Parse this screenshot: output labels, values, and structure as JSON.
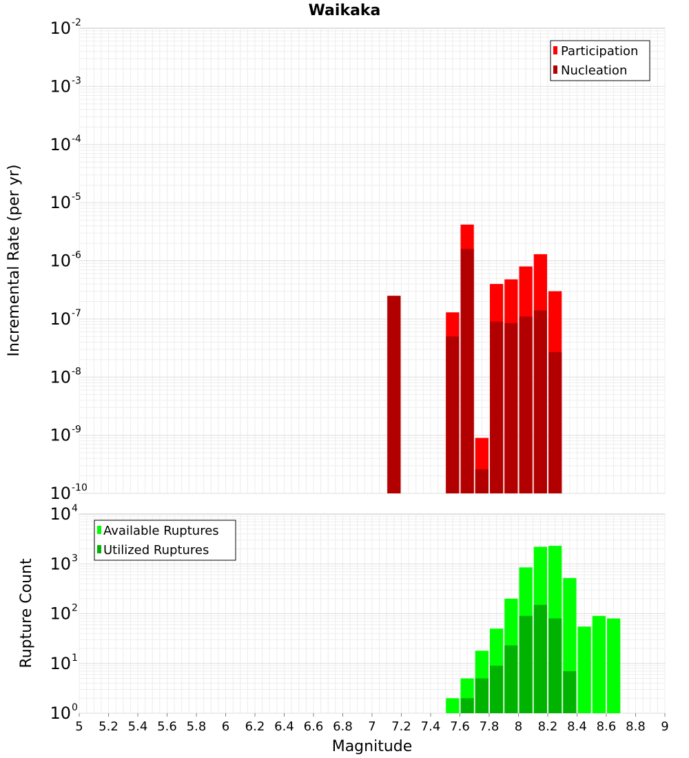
{
  "chart_data": [
    {
      "type": "bar",
      "title": "Waikaka",
      "xlabel": "Magnitude",
      "ylabel": "Incremental Rate (per yr)",
      "yscale": "log",
      "ylim_exponents": [
        -10,
        -2
      ],
      "xlim": [
        5,
        9
      ],
      "bin_width": 0.1,
      "legend_position": "top-right",
      "series": [
        {
          "name": "Participation",
          "color": "#ff0000",
          "bins": [
            7.15,
            7.55,
            7.65,
            7.75,
            7.85,
            7.95,
            8.05,
            8.15,
            8.25
          ],
          "values": [
            2.5e-07,
            1.3e-07,
            4.2e-06,
            9e-10,
            4e-07,
            4.8e-07,
            8e-07,
            1.3e-06,
            3e-07
          ]
        },
        {
          "name": "Nucleation",
          "color": "#b20000",
          "bins": [
            7.15,
            7.55,
            7.65,
            7.75,
            7.85,
            7.95,
            8.05,
            8.15,
            8.25
          ],
          "values": [
            2.5e-07,
            5e-08,
            1.6e-06,
            2.6e-10,
            9e-08,
            8.5e-08,
            1.1e-07,
            1.4e-07,
            2.7e-08
          ]
        }
      ]
    },
    {
      "type": "bar",
      "xlabel": "Magnitude",
      "ylabel": "Rupture Count",
      "yscale": "log",
      "ylim_exponents": [
        0,
        4
      ],
      "xlim": [
        5,
        9
      ],
      "bin_width": 0.1,
      "legend_position": "top-left",
      "series": [
        {
          "name": "Available Ruptures",
          "color": "#00ff00",
          "bins": [
            7.15,
            7.55,
            7.65,
            7.75,
            7.85,
            7.95,
            8.05,
            8.15,
            8.25,
            8.35,
            8.45,
            8.55,
            8.65
          ],
          "values": [
            1,
            2,
            5,
            18,
            50,
            200,
            850,
            2200,
            2300,
            520,
            55,
            90,
            80
          ]
        },
        {
          "name": "Utilized Ruptures",
          "color": "#00b300",
          "bins": [
            7.15,
            7.55,
            7.65,
            7.75,
            7.85,
            7.95,
            8.05,
            8.15,
            8.25,
            8.35
          ],
          "values": [
            1,
            1,
            2,
            5,
            9,
            23,
            90,
            150,
            80,
            7
          ]
        }
      ]
    }
  ],
  "x_ticks": [
    "5",
    "5.2",
    "5.4",
    "5.6",
    "5.8",
    "6",
    "6.2",
    "6.4",
    "6.6",
    "6.8",
    "7",
    "7.2",
    "7.4",
    "7.6",
    "7.8",
    "8",
    "8.2",
    "8.4",
    "8.6",
    "8.8",
    "9"
  ]
}
